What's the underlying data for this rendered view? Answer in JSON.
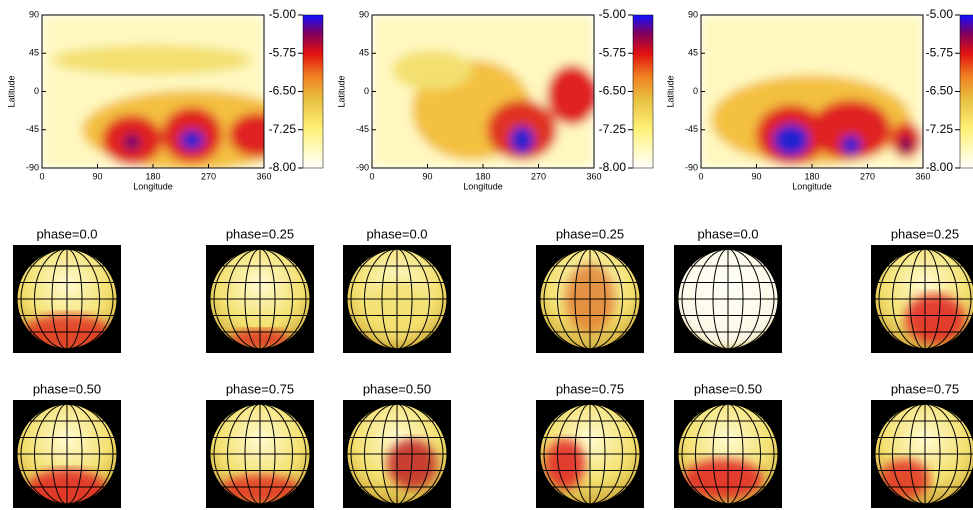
{
  "panels": [
    {
      "ylabel": "Latitude",
      "xlabel": "Longitude",
      "xticks": [
        0,
        90,
        180,
        270,
        360
      ],
      "yticks": [
        90,
        45,
        0,
        -45,
        -90
      ],
      "colorbar_ticks": [
        {
          "value": -5,
          "label": "-5.00"
        },
        {
          "value": -5.75,
          "label": "-5.75"
        },
        {
          "value": -6.5,
          "label": "-6.50"
        },
        {
          "value": -7.25,
          "label": "-7.25"
        },
        {
          "value": -8,
          "label": "-8.00"
        }
      ]
    },
    {
      "ylabel": "Latitude",
      "xlabel": "Longitude",
      "xticks": [
        0,
        90,
        180,
        270,
        360
      ],
      "yticks": [
        90,
        45,
        0,
        -45,
        -90
      ],
      "colorbar_ticks": [
        {
          "value": -5,
          "label": "-5.00"
        },
        {
          "value": -5.75,
          "label": "-5.75"
        },
        {
          "value": -6.5,
          "label": "-6.50"
        },
        {
          "value": -7.25,
          "label": "-7.25"
        },
        {
          "value": -8,
          "label": "-8.00"
        }
      ]
    },
    {
      "ylabel": "Latitude",
      "xlabel": "Longitude",
      "xticks": [
        0,
        90,
        180,
        270,
        360
      ],
      "yticks": [
        90,
        45,
        0,
        -45,
        -90
      ],
      "colorbar_ticks": [
        {
          "value": -5,
          "label": "-5.00"
        },
        {
          "value": -5.75,
          "label": "-5.75"
        },
        {
          "value": -6.5,
          "label": "-6.50"
        },
        {
          "value": -7.25,
          "label": "-7.25"
        },
        {
          "value": -8,
          "label": "-8.00"
        }
      ]
    }
  ],
  "globes": [
    {
      "label": "phase=0.0"
    },
    {
      "label": "phase=0.25"
    },
    {
      "label": "phase=0.0"
    },
    {
      "label": "phase=0.25"
    },
    {
      "label": "phase=0.0"
    },
    {
      "label": "phase=0.25"
    },
    {
      "label": "phase=0.50"
    },
    {
      "label": "phase=0.75"
    },
    {
      "label": "phase=0.50"
    },
    {
      "label": "phase=0.75"
    },
    {
      "label": "phase=0.50"
    },
    {
      "label": "phase=0.75"
    }
  ]
}
